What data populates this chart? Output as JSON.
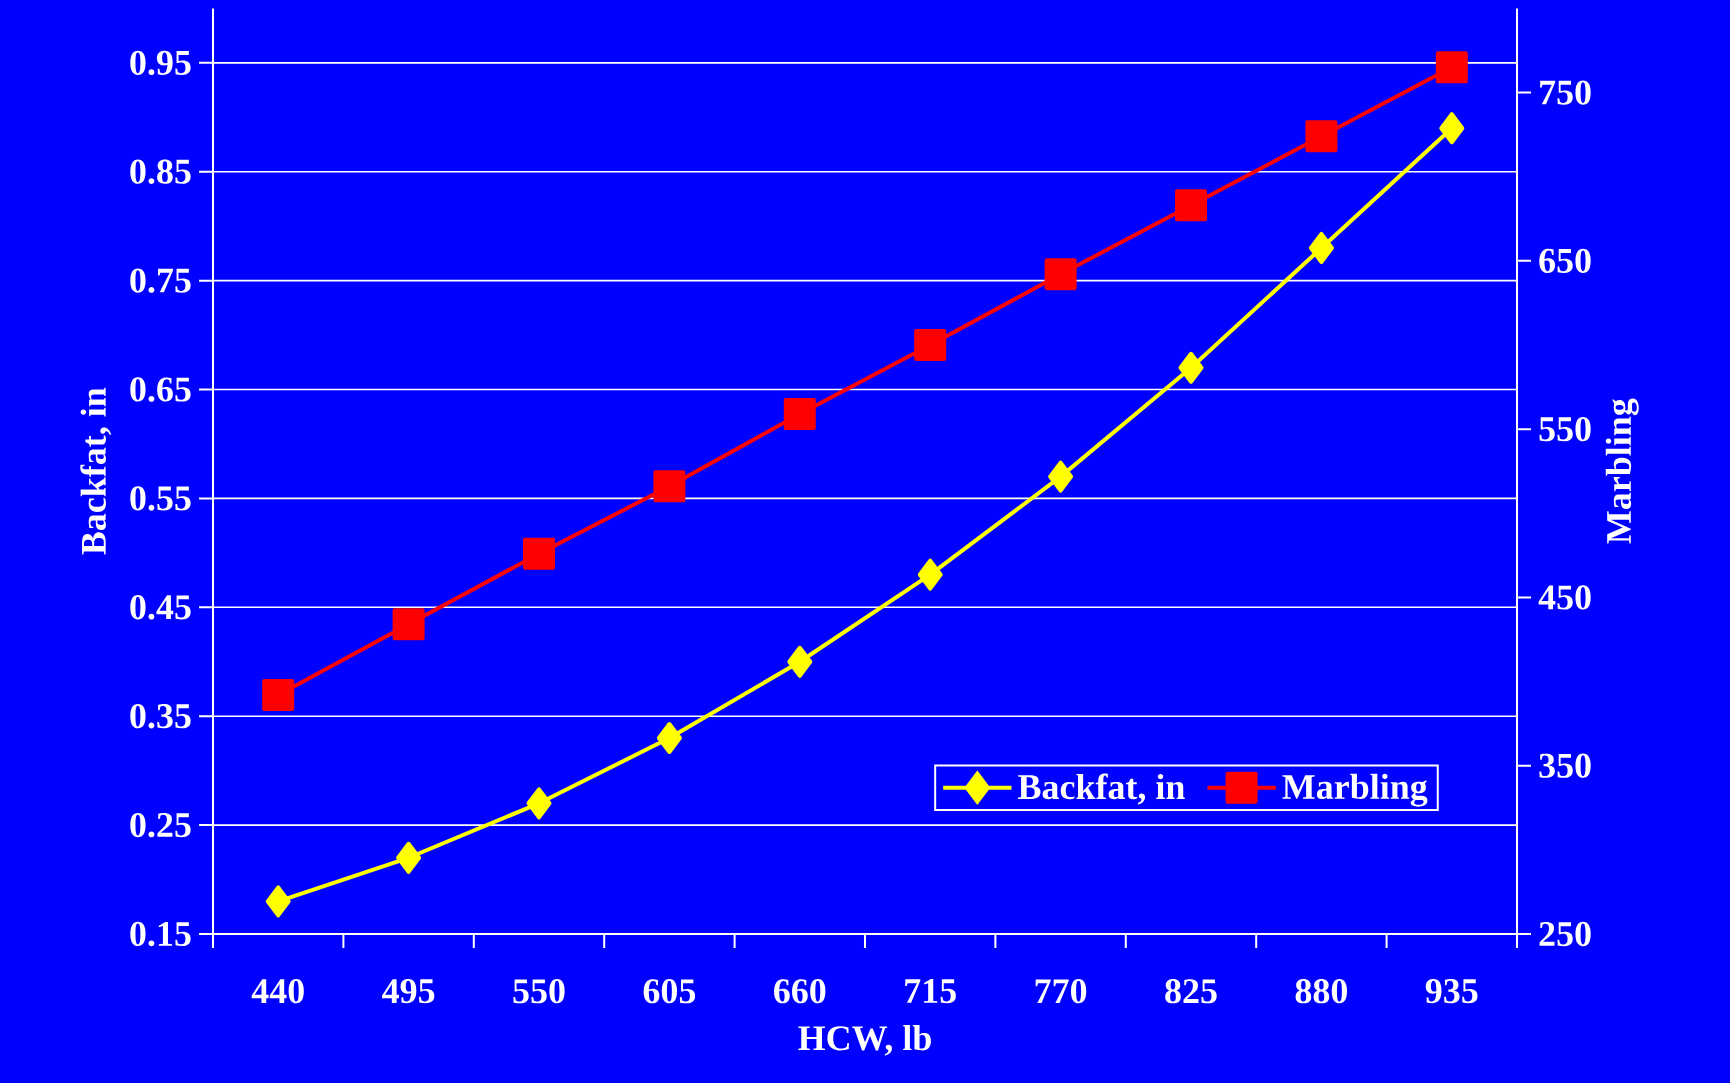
{
  "chart_data": {
    "type": "line",
    "xlabel": "HCW, lb",
    "ylabel": "Backfat, in",
    "y2label": "Marbling",
    "categories": [
      "440",
      "495",
      "550",
      "605",
      "660",
      "715",
      "770",
      "825",
      "880",
      "935"
    ],
    "series": [
      {
        "name": "Backfat, in",
        "color": "#ffff00",
        "marker": "diamond",
        "values": [
          0.18,
          0.22,
          0.27,
          0.33,
          0.4,
          0.48,
          0.57,
          0.67,
          0.78,
          0.89
        ]
      },
      {
        "name": "Marbling",
        "color": "#ff0000",
        "marker": "square",
        "axis": "y2",
        "values": [
          392,
          434,
          476,
          516,
          559,
          600,
          642,
          683,
          724,
          765
        ]
      }
    ],
    "ylim": [
      0.15,
      1.0
    ],
    "yticks": [
      0.15,
      0.25,
      0.35,
      0.45,
      0.55,
      0.65,
      0.75,
      0.85,
      0.95
    ],
    "y2lim": [
      250,
      800
    ],
    "y2ticks": [
      250,
      350,
      450,
      550,
      650,
      750
    ],
    "grid": "y",
    "legend": "bottom right",
    "line_style": "solid"
  }
}
